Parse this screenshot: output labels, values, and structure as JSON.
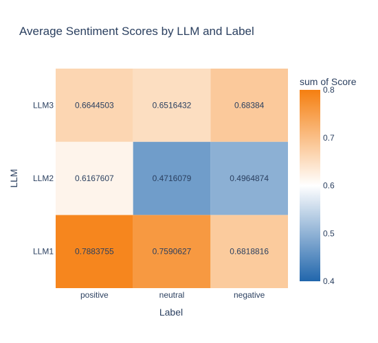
{
  "chart_data": {
    "type": "heatmap",
    "title": "Average Sentiment Scores by LLM and Label",
    "xlabel": "Label",
    "ylabel": "LLM",
    "x": [
      "positive",
      "neutral",
      "negative"
    ],
    "y": [
      "LLM1",
      "LLM2",
      "LLM3"
    ],
    "z": [
      [
        0.7883755,
        0.7590627,
        0.6818816
      ],
      [
        0.6167607,
        0.4716079,
        0.4964874
      ],
      [
        0.6644503,
        0.6516432,
        0.68384
      ]
    ],
    "z_text": [
      [
        "0.7883755",
        "0.7590627",
        "0.6818816"
      ],
      [
        "0.6167607",
        "0.4716079",
        "0.4964874"
      ],
      [
        "0.6644503",
        "0.6516432",
        "0.68384"
      ]
    ],
    "colorbar": {
      "title": "sum of Score",
      "range": [
        0.4,
        0.8
      ],
      "ticks": [
        0.4,
        0.5,
        0.6,
        0.7,
        0.8
      ],
      "tick_labels": [
        "0.4",
        "0.5",
        "0.6",
        "0.7",
        "0.8"
      ],
      "colors": [
        "#2166ac",
        "#ffffff",
        "#f57f10"
      ],
      "midpoint": 0.6
    }
  }
}
